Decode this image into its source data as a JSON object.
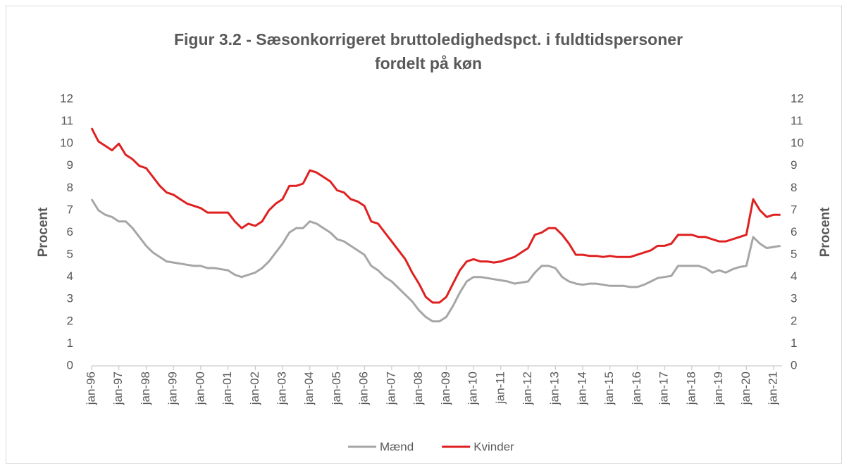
{
  "chart_data": {
    "type": "line",
    "title": [
      "Figur 3.2 - Sæsonkorrigeret bruttoledighedspct. i fuldtidspersoner",
      "fordelt på køn"
    ],
    "ylabel": "Procent",
    "y2label": "Procent",
    "categories": [
      "jan-96",
      null,
      null,
      null,
      "jan-97",
      null,
      null,
      null,
      "jan-98",
      null,
      null,
      null,
      "jan-99",
      null,
      null,
      null,
      "jan-00",
      null,
      null,
      null,
      "jan-01",
      null,
      null,
      null,
      "jan-02",
      null,
      null,
      null,
      "jan-03",
      null,
      null,
      null,
      "jan-04",
      null,
      null,
      null,
      "jan-05",
      null,
      null,
      null,
      "jan-06",
      null,
      null,
      null,
      "jan-07",
      null,
      null,
      null,
      "jan-08",
      null,
      null,
      null,
      "jan-09",
      null,
      null,
      null,
      "jan-10",
      null,
      null,
      null,
      "jan-11",
      null,
      null,
      null,
      "jan-12",
      null,
      null,
      null,
      "jan-13",
      null,
      null,
      null,
      "jan-14",
      null,
      null,
      null,
      "jan-15",
      null,
      null,
      null,
      "jan-16",
      null,
      null,
      null,
      "jan-17",
      null,
      null,
      null,
      "jan-18",
      null,
      null,
      null,
      "jan-19",
      null,
      null,
      null,
      "jan-20",
      null,
      null,
      null,
      "jan-21",
      null
    ],
    "series": [
      {
        "name": "Mænd",
        "color": "#a6a6a6",
        "values": [
          7.5,
          7.0,
          6.8,
          6.7,
          6.5,
          6.5,
          6.2,
          5.8,
          5.4,
          5.1,
          4.9,
          4.7,
          4.65,
          4.6,
          4.55,
          4.5,
          4.5,
          4.4,
          4.4,
          4.35,
          4.3,
          4.1,
          4.0,
          4.1,
          4.2,
          4.4,
          4.7,
          5.1,
          5.5,
          6.0,
          6.2,
          6.2,
          6.5,
          6.4,
          6.2,
          6.0,
          5.7,
          5.6,
          5.4,
          5.2,
          5.0,
          4.5,
          4.3,
          4.0,
          3.8,
          3.5,
          3.2,
          2.9,
          2.5,
          2.2,
          2.0,
          2.0,
          2.2,
          2.7,
          3.3,
          3.8,
          4.0,
          4.0,
          3.95,
          3.9,
          3.85,
          3.8,
          3.7,
          3.75,
          3.8,
          4.2,
          4.5,
          4.5,
          4.4,
          4.0,
          3.8,
          3.7,
          3.65,
          3.7,
          3.7,
          3.65,
          3.6,
          3.6,
          3.6,
          3.55,
          3.55,
          3.65,
          3.8,
          3.95,
          4.0,
          4.05,
          4.5,
          4.5,
          4.5,
          4.5,
          4.4,
          4.2,
          4.3,
          4.2,
          4.35,
          4.45,
          4.5,
          5.8,
          5.5,
          5.3,
          5.35,
          5.4
        ]
      },
      {
        "name": "Kvinder",
        "color": "#e02020",
        "values": [
          10.7,
          10.1,
          9.9,
          9.7,
          10.0,
          9.5,
          9.3,
          9.0,
          8.9,
          8.5,
          8.1,
          7.8,
          7.7,
          7.5,
          7.3,
          7.2,
          7.1,
          6.9,
          6.9,
          6.9,
          6.9,
          6.5,
          6.2,
          6.4,
          6.3,
          6.5,
          7.0,
          7.3,
          7.5,
          8.1,
          8.1,
          8.2,
          8.8,
          8.7,
          8.5,
          8.3,
          7.9,
          7.8,
          7.5,
          7.4,
          7.2,
          6.5,
          6.4,
          6.0,
          5.6,
          5.2,
          4.8,
          4.2,
          3.7,
          3.1,
          2.85,
          2.85,
          3.1,
          3.7,
          4.3,
          4.7,
          4.8,
          4.7,
          4.7,
          4.65,
          4.7,
          4.8,
          4.9,
          5.1,
          5.3,
          5.9,
          6.0,
          6.2,
          6.2,
          5.9,
          5.5,
          5.0,
          5.0,
          4.95,
          4.95,
          4.9,
          4.95,
          4.9,
          4.9,
          4.9,
          5.0,
          5.1,
          5.2,
          5.4,
          5.4,
          5.5,
          5.9,
          5.9,
          5.9,
          5.8,
          5.8,
          5.7,
          5.6,
          5.6,
          5.7,
          5.8,
          5.9,
          7.5,
          7.0,
          6.7,
          6.8,
          6.8
        ]
      }
    ],
    "ylim": [
      0,
      12
    ],
    "yticks": [
      0,
      1,
      2,
      3,
      4,
      5,
      6,
      7,
      8,
      9,
      10,
      11,
      12
    ],
    "y2lim": [
      0,
      12
    ],
    "y2ticks": [
      0,
      1,
      2,
      3,
      4,
      5,
      6,
      7,
      8,
      9,
      10,
      11,
      12
    ],
    "grid": false,
    "legend": "bottom"
  }
}
